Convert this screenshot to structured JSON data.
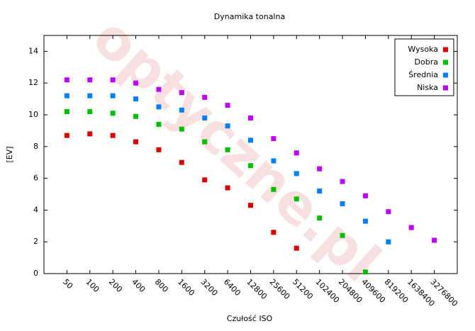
{
  "chart_data": {
    "type": "scatter",
    "title": "Dynamika tonalna",
    "x_label": "Czułość ISO",
    "y_label": "[EV]",
    "watermark": "optyczne.pl",
    "categories": [
      "50",
      "100",
      "200",
      "400",
      "800",
      "1600",
      "3200",
      "6400",
      "12800",
      "25600",
      "51200",
      "102400",
      "204800",
      "409600",
      "819200",
      "1638400",
      "3276800"
    ],
    "series": [
      {
        "name": "Wysoka",
        "color": "#e00000",
        "values": [
          8.7,
          8.8,
          8.7,
          8.3,
          7.8,
          7.0,
          5.9,
          5.4,
          4.3,
          2.6,
          1.6,
          null,
          null,
          null,
          null,
          null,
          null
        ]
      },
      {
        "name": "Dobra",
        "color": "#00c000",
        "values": [
          10.2,
          10.2,
          10.1,
          9.9,
          9.4,
          9.1,
          8.3,
          7.8,
          6.8,
          5.3,
          4.7,
          3.5,
          2.4,
          0.1,
          null,
          null,
          null
        ]
      },
      {
        "name": "Średnia",
        "color": "#0080ff",
        "values": [
          11.2,
          11.2,
          11.2,
          11.0,
          10.5,
          10.3,
          9.8,
          9.3,
          8.4,
          7.1,
          6.3,
          5.2,
          4.4,
          3.3,
          2.0,
          null,
          null
        ]
      },
      {
        "name": "Niska",
        "color": "#c000ff",
        "values": [
          12.2,
          12.2,
          12.2,
          12.0,
          11.6,
          11.4,
          11.1,
          10.6,
          9.8,
          8.5,
          7.6,
          6.6,
          5.8,
          4.9,
          3.9,
          2.9,
          2.1
        ]
      }
    ],
    "ylim": [
      0,
      15
    ],
    "yticks": [
      0,
      2,
      4,
      6,
      8,
      10,
      12,
      14
    ],
    "legend": "top-right"
  }
}
